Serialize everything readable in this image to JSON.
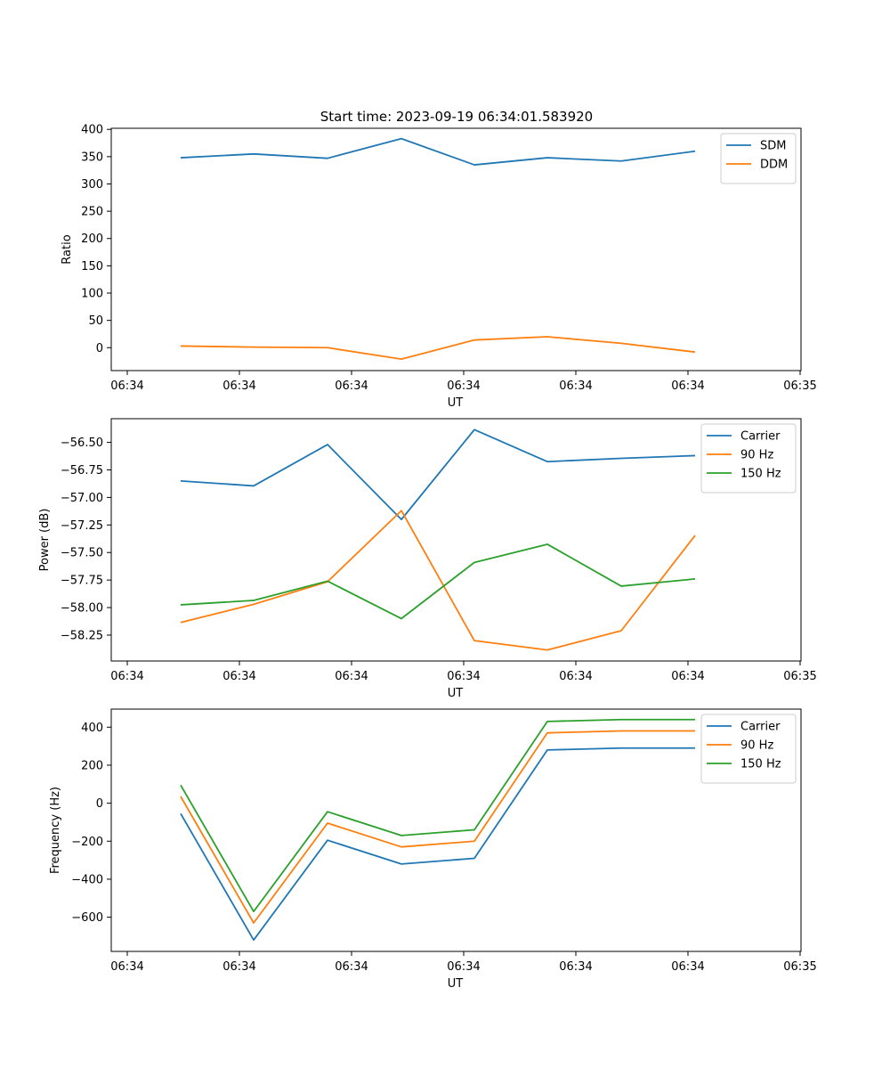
{
  "figure_title": "Start time: 2023-09-19 06:34:01.583920",
  "chart_data": [
    {
      "type": "line",
      "title": "Start time: 2023-09-19 06:34:01.583920",
      "xlabel": "UT",
      "ylabel": "Ratio",
      "x_tick_labels": [
        "06:34",
        "06:34",
        "06:34",
        "06:34",
        "06:34",
        "06:34",
        "06:35"
      ],
      "ylim": [
        -42,
        402
      ],
      "y_ticks": [
        0,
        50,
        100,
        150,
        200,
        250,
        300,
        350,
        400
      ],
      "y_tick_labels": [
        "0",
        "50",
        "100",
        "150",
        "200",
        "250",
        "300",
        "350",
        "400"
      ],
      "legend_position": "top-right",
      "series": [
        {
          "name": "SDM",
          "color": "#1f77b4",
          "values": [
            348,
            355,
            347,
            383,
            335,
            348,
            342,
            360
          ]
        },
        {
          "name": "DDM",
          "color": "#ff7f0e",
          "values": [
            3,
            1,
            0,
            -21,
            14,
            20,
            8,
            -8
          ]
        }
      ]
    },
    {
      "type": "line",
      "title": "",
      "xlabel": "UT",
      "ylabel": "Power (dB)",
      "x_tick_labels": [
        "06:34",
        "06:34",
        "06:34",
        "06:34",
        "06:34",
        "06:34",
        "06:35"
      ],
      "ylim": [
        -58.485,
        -56.285
      ],
      "y_ticks": [
        -58.25,
        -58.0,
        -57.75,
        -57.5,
        -57.25,
        -57.0,
        -56.75,
        -56.5
      ],
      "y_tick_labels": [
        "−58.25",
        "−58.00",
        "−57.75",
        "−57.50",
        "−57.25",
        "−57.00",
        "−56.75",
        "−56.50"
      ],
      "legend_position": "top-right",
      "series": [
        {
          "name": "Carrier",
          "color": "#1f77b4",
          "values": [
            -56.85,
            -56.895,
            -56.52,
            -57.2,
            -56.385,
            -56.675,
            -56.645,
            -56.62
          ]
        },
        {
          "name": "90 Hz",
          "color": "#ff7f0e",
          "values": [
            -58.135,
            -57.97,
            -57.765,
            -57.12,
            -58.3,
            -58.385,
            -58.21,
            -57.345
          ]
        },
        {
          "name": "150 Hz",
          "color": "#2ca02c",
          "values": [
            -57.975,
            -57.935,
            -57.76,
            -58.1,
            -57.59,
            -57.425,
            -57.805,
            -57.74
          ]
        }
      ]
    },
    {
      "type": "line",
      "title": "",
      "xlabel": "UT",
      "ylabel": "Frequency (Hz)",
      "x_tick_labels": [
        "06:34",
        "06:34",
        "06:34",
        "06:34",
        "06:34",
        "06:34",
        "06:35"
      ],
      "ylim": [
        -780,
        495
      ],
      "y_ticks": [
        -600,
        -400,
        -200,
        0,
        200,
        400
      ],
      "y_tick_labels": [
        "−600",
        "−400",
        "−200",
        "0",
        "200",
        "400"
      ],
      "legend_position": "top-right",
      "series": [
        {
          "name": "Carrier",
          "color": "#1f77b4",
          "values": [
            -55,
            -720,
            -195,
            -320,
            -290,
            280,
            290,
            290
          ]
        },
        {
          "name": "90 Hz",
          "color": "#ff7f0e",
          "values": [
            35,
            -630,
            -105,
            -230,
            -200,
            370,
            380,
            380
          ]
        },
        {
          "name": "150 Hz",
          "color": "#2ca02c",
          "values": [
            95,
            -570,
            -45,
            -170,
            -140,
            430,
            440,
            440
          ]
        }
      ]
    }
  ]
}
